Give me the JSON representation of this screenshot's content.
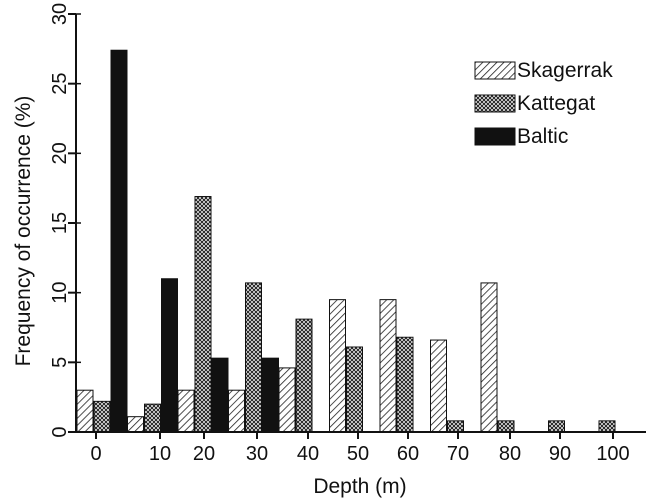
{
  "chart_data": {
    "type": "bar",
    "xlabel": "Depth (m)",
    "ylabel": "Frequency of occurrence (%)",
    "ylim": [
      0,
      30
    ],
    "y_ticks": [
      "0",
      "5",
      "10",
      "15",
      "20",
      "25",
      "30"
    ],
    "x_ticks": [
      "0",
      "10",
      "20",
      "30",
      "40",
      "50",
      "60",
      "70",
      "80",
      "90",
      "100"
    ],
    "categories": [
      "0",
      "10",
      "20",
      "30",
      "40",
      "50",
      "60",
      "70",
      "80",
      "90",
      "100"
    ],
    "legend_position": "top-right",
    "series": [
      {
        "name": "Skagerrak",
        "pattern": "diagonal-hatch",
        "values": [
          3.0,
          1.1,
          3.0,
          3.0,
          4.6,
          9.5,
          9.5,
          6.6,
          10.7,
          0.0,
          0.0
        ]
      },
      {
        "name": "Kattegat",
        "pattern": "crosshatch",
        "values": [
          2.2,
          2.0,
          16.9,
          10.7,
          8.1,
          6.1,
          6.8,
          0.8,
          0.8,
          0.8,
          0.8
        ]
      },
      {
        "name": "Baltic",
        "pattern": "solid-black",
        "values": [
          27.4,
          11.0,
          5.3,
          5.3,
          0.0,
          0.0,
          0.0,
          0.0,
          0.0,
          0.0,
          0.0
        ]
      }
    ]
  }
}
